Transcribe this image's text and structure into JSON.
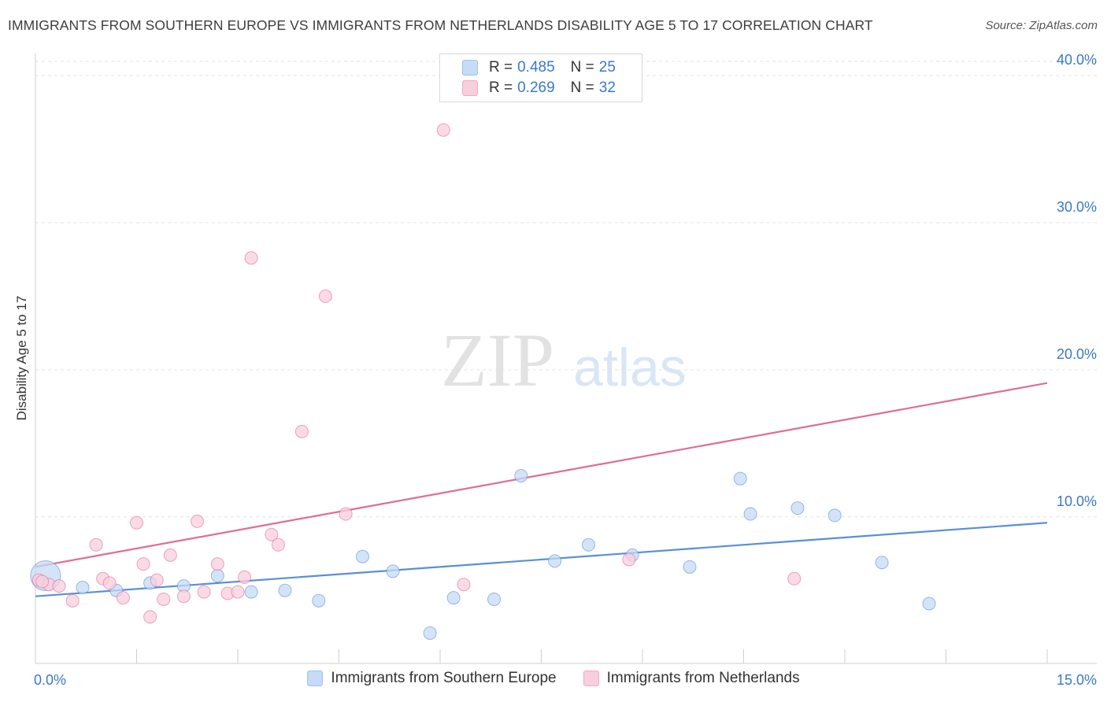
{
  "title": "IMMIGRANTS FROM SOUTHERN EUROPE VS IMMIGRANTS FROM NETHERLANDS DISABILITY AGE 5 TO 17 CORRELATION CHART",
  "source": "Source: ZipAtlas.com",
  "watermark": {
    "zip": "ZIP",
    "atlas": "atlas"
  },
  "stats_legend": [
    {
      "r_label": "R = ",
      "r_value": "0.485",
      "n_label": "N = ",
      "n_value": "25",
      "color": "#9ec2ef"
    },
    {
      "r_label": "R = ",
      "r_value": "0.269",
      "n_label": "N = ",
      "n_value": "32",
      "color": "#f4a9c2"
    }
  ],
  "chart_data": {
    "type": "scatter",
    "ylabel": "Disability Age 5 to 17",
    "xlim": [
      0,
      15
    ],
    "ylim": [
      1,
      41.5
    ],
    "x_tick_labels": [
      {
        "value": 0,
        "label": "0.0%"
      },
      {
        "value": 15,
        "label": "15.0%"
      }
    ],
    "y_tick_labels": [
      {
        "value": 10,
        "label": "10.0%"
      },
      {
        "value": 20,
        "label": "20.0%"
      },
      {
        "value": 30,
        "label": "30.0%"
      },
      {
        "value": 40,
        "label": "40.0%"
      }
    ],
    "grid": true,
    "legend_position": "bottom",
    "series": [
      {
        "name": "Immigrants from Southern Europe",
        "color": "#5a8fd8",
        "fill": "#c5dbf6",
        "trend": {
          "x": [
            0,
            15
          ],
          "y": [
            4.6,
            9.6
          ]
        },
        "points": [
          {
            "x": 0.15,
            "y": 6.0,
            "big": true
          },
          {
            "x": 0.7,
            "y": 5.2
          },
          {
            "x": 1.2,
            "y": 5.0
          },
          {
            "x": 1.7,
            "y": 5.5
          },
          {
            "x": 2.2,
            "y": 5.3
          },
          {
            "x": 2.7,
            "y": 6.0
          },
          {
            "x": 3.2,
            "y": 4.9
          },
          {
            "x": 3.7,
            "y": 5.0
          },
          {
            "x": 4.2,
            "y": 4.3
          },
          {
            "x": 4.85,
            "y": 7.3
          },
          {
            "x": 5.3,
            "y": 6.3
          },
          {
            "x": 5.85,
            "y": 2.1
          },
          {
            "x": 6.2,
            "y": 4.5
          },
          {
            "x": 6.8,
            "y": 4.4
          },
          {
            "x": 7.2,
            "y": 12.8
          },
          {
            "x": 7.7,
            "y": 7.0
          },
          {
            "x": 8.2,
            "y": 8.1
          },
          {
            "x": 8.85,
            "y": 7.4
          },
          {
            "x": 9.7,
            "y": 6.6
          },
          {
            "x": 10.45,
            "y": 12.6
          },
          {
            "x": 10.6,
            "y": 10.2
          },
          {
            "x": 11.3,
            "y": 10.6
          },
          {
            "x": 11.85,
            "y": 10.1
          },
          {
            "x": 12.55,
            "y": 6.9
          },
          {
            "x": 13.25,
            "y": 4.1
          }
        ]
      },
      {
        "name": "Immigrants from Netherlands",
        "color": "#e06c96",
        "fill": "#f8cfdc",
        "trend": {
          "x": [
            0,
            15
          ],
          "y": [
            6.6,
            19.1
          ]
        },
        "points": [
          {
            "x": 0.05,
            "y": 5.7
          },
          {
            "x": 0.2,
            "y": 5.4
          },
          {
            "x": 0.35,
            "y": 5.3
          },
          {
            "x": 0.55,
            "y": 4.3
          },
          {
            "x": 0.9,
            "y": 8.1
          },
          {
            "x": 1.0,
            "y": 5.8
          },
          {
            "x": 1.1,
            "y": 5.5
          },
          {
            "x": 1.3,
            "y": 4.5
          },
          {
            "x": 1.5,
            "y": 9.6
          },
          {
            "x": 1.6,
            "y": 6.8
          },
          {
            "x": 1.7,
            "y": 3.2
          },
          {
            "x": 1.8,
            "y": 5.7
          },
          {
            "x": 1.9,
            "y": 4.4
          },
          {
            "x": 2.0,
            "y": 7.4
          },
          {
            "x": 2.2,
            "y": 4.6
          },
          {
            "x": 2.4,
            "y": 9.7
          },
          {
            "x": 2.5,
            "y": 4.9
          },
          {
            "x": 2.7,
            "y": 6.8
          },
          {
            "x": 2.85,
            "y": 4.8
          },
          {
            "x": 3.0,
            "y": 4.9
          },
          {
            "x": 3.1,
            "y": 5.9
          },
          {
            "x": 3.2,
            "y": 27.6
          },
          {
            "x": 3.5,
            "y": 8.8
          },
          {
            "x": 3.6,
            "y": 8.1
          },
          {
            "x": 3.95,
            "y": 15.8
          },
          {
            "x": 4.3,
            "y": 25.0
          },
          {
            "x": 4.6,
            "y": 10.2
          },
          {
            "x": 6.05,
            "y": 36.3
          },
          {
            "x": 6.35,
            "y": 5.4
          },
          {
            "x": 8.8,
            "y": 7.1
          },
          {
            "x": 11.25,
            "y": 5.8
          },
          {
            "x": 0.1,
            "y": 5.6
          }
        ]
      }
    ]
  }
}
